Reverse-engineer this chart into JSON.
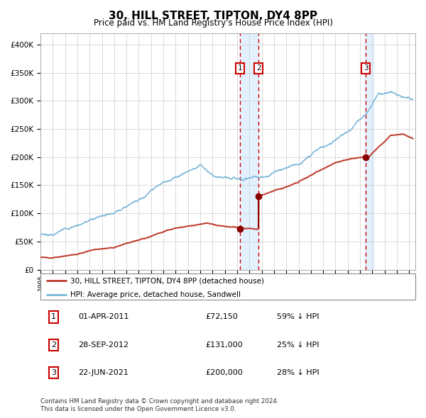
{
  "title": "30, HILL STREET, TIPTON, DY4 8PP",
  "subtitle": "Price paid vs. HM Land Registry's House Price Index (HPI)",
  "legend_line1": "30, HILL STREET, TIPTON, DY4 8PP (detached house)",
  "legend_line2": "HPI: Average price, detached house, Sandwell",
  "footer1": "Contains HM Land Registry data © Crown copyright and database right 2024.",
  "footer2": "This data is licensed under the Open Government Licence v3.0.",
  "rows": [
    [
      "1",
      "01-APR-2011",
      "£72,150",
      "59% ↓ HPI"
    ],
    [
      "2",
      "28-SEP-2012",
      "£131,000",
      "25% ↓ HPI"
    ],
    [
      "3",
      "22-JUN-2021",
      "£200,000",
      "28% ↓ HPI"
    ]
  ],
  "hpi_color": "#7ab8d9",
  "price_color": "#c0392b",
  "dot_color": "#8B0000",
  "bg_color": "#ffffff",
  "grid_color": "#cccccc",
  "shade_color": "#ddeeff",
  "vline_color": "#cc0000",
  "box_color": "#cc0000",
  "t1_x": 2011.25,
  "t1_y": 72150,
  "t2_x": 2012.75,
  "t2_y": 131000,
  "t3_x": 2021.47,
  "t3_y": 200000,
  "ylim": [
    0,
    420000
  ],
  "xlim_start": 1995.0,
  "xlim_end": 2025.5
}
